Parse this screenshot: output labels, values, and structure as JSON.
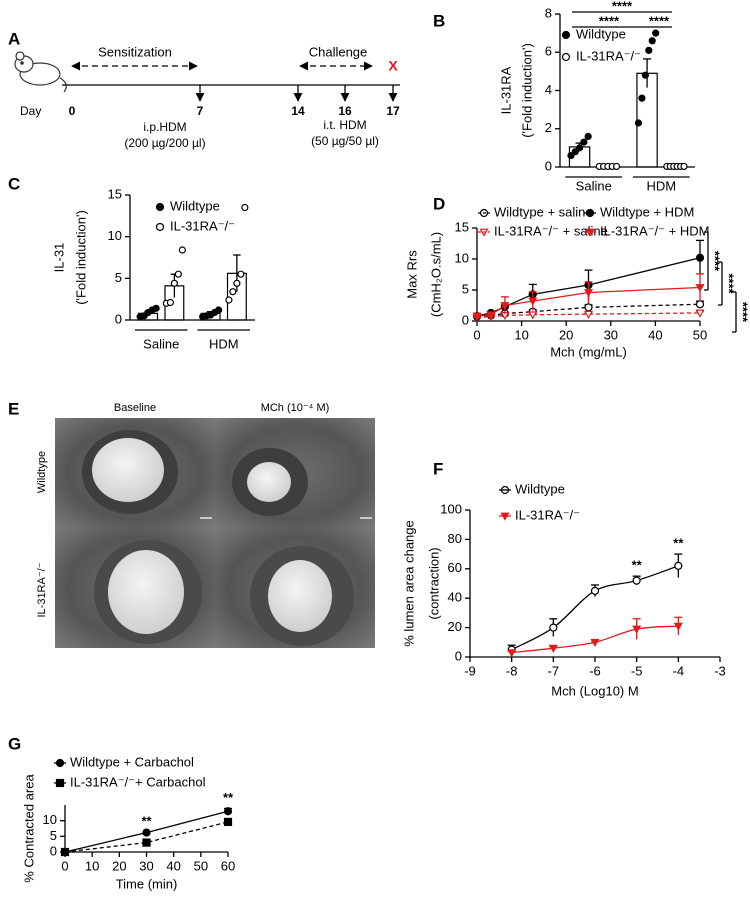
{
  "panel_labels": [
    "A",
    "B",
    "C",
    "D",
    "E",
    "F",
    "G"
  ],
  "timeline": {
    "start_label": "Day",
    "days": [
      0,
      7,
      14,
      16,
      17
    ],
    "phases": [
      "Sensitization",
      "Challenge"
    ],
    "end_mark": "X",
    "treatments": [
      {
        "name": "i.p.HDM",
        "dose": "(200 µg/200 µl)"
      },
      {
        "name": "i.t. HDM",
        "dose": "(50 µg/50 µl)"
      }
    ]
  },
  "images": {
    "columns": [
      "Baseline",
      "MCh (10⁻⁴ M)"
    ],
    "rows": [
      "Wildtype",
      "IL-31RA⁻/⁻"
    ]
  },
  "chart_data": [
    {
      "type": "bar",
      "y_label": [
        "IL-31RA",
        "('Fold induction')"
      ],
      "categories": [
        "Saline",
        "HDM"
      ],
      "series": [
        {
          "name": "Wildtype",
          "color": "#000000",
          "filled": true,
          "marker": "circle",
          "values": [
            1.05,
            4.9
          ],
          "errors": [
            0.2,
            0.75
          ],
          "points": [
            [
              0.6,
              0.8,
              1.0,
              1.3,
              1.6
            ],
            [
              2.3,
              3.6,
              4.8,
              6.1,
              6.6,
              7.0
            ]
          ]
        },
        {
          "name": "IL-31RA⁻/⁻",
          "color": "#000000",
          "filled": false,
          "marker": "circle",
          "values": [
            0.03,
            0.03
          ],
          "errors": [
            0.01,
            0.01
          ],
          "points": [
            [
              0.03,
              0.03,
              0.03,
              0.03,
              0.03
            ],
            [
              0.03,
              0.03,
              0.03,
              0.03,
              0.03,
              0.03
            ]
          ]
        }
      ],
      "ylim": [
        0,
        8
      ],
      "yticks": [
        0,
        2,
        4,
        6,
        8
      ],
      "significance": [
        "****",
        "****",
        "****"
      ]
    },
    {
      "type": "bar",
      "y_label": [
        "IL-31",
        "('Fold induction')"
      ],
      "categories": [
        "Saline",
        "HDM"
      ],
      "series": [
        {
          "name": "Wildtype",
          "color": "#000000",
          "filled": true,
          "marker": "circle",
          "values": [
            0.8,
            0.8
          ],
          "errors": [
            0.25,
            0.2
          ],
          "points": [
            [
              0.4,
              0.5,
              0.9,
              1.2,
              1.4
            ],
            [
              0.4,
              0.5,
              0.6,
              0.9,
              1.2
            ]
          ]
        },
        {
          "name": "IL-31RA⁻/⁻",
          "color": "#000000",
          "filled": false,
          "marker": "circle",
          "values": [
            4.1,
            5.6
          ],
          "errors": [
            1.4,
            2.2
          ],
          "points": [
            [
              2.0,
              2.1,
              4.4,
              5.5,
              8.4
            ],
            [
              2.4,
              3.4,
              4.4,
              5.5,
              13.5
            ]
          ]
        }
      ],
      "ylim": [
        0,
        15
      ],
      "yticks": [
        0,
        5,
        10,
        15
      ]
    },
    {
      "type": "line",
      "y_label": [
        "Max Rrs",
        "(CmH₂O.s/mL)"
      ],
      "x_label": "Mch (mg/mL)",
      "x": [
        0,
        3.125,
        6.25,
        12.5,
        25,
        50
      ],
      "series": [
        {
          "name": "Wildtype + saline",
          "color": "#000000",
          "dashed": true,
          "filled": false,
          "marker": "circle",
          "values": [
            0.7,
            0.9,
            1.2,
            1.5,
            2.2,
            2.7
          ],
          "errors": [
            0.1,
            0.1,
            0.2,
            0.3,
            0.4,
            0.5
          ]
        },
        {
          "name": "Wildtype + HDM",
          "color": "#000000",
          "dashed": false,
          "filled": true,
          "marker": "circle",
          "values": [
            0.8,
            1.3,
            2.3,
            4.3,
            5.8,
            10.2
          ],
          "errors": [
            0.1,
            0.2,
            0.3,
            1.6,
            2.4,
            2.8
          ]
        },
        {
          "name": "IL-31RA⁻/⁻ + saline",
          "color": "#e31a1c",
          "dashed": true,
          "filled": false,
          "marker": "triangle-down",
          "values": [
            0.6,
            0.7,
            0.9,
            1.0,
            1.1,
            1.3
          ],
          "errors": [
            0.05,
            0.1,
            0.1,
            0.15,
            0.2,
            0.3
          ]
        },
        {
          "name": "IL-31RA⁻/⁻ + HDM",
          "color": "#e31a1c",
          "dashed": false,
          "filled": true,
          "marker": "triangle-down",
          "values": [
            0.8,
            1.0,
            2.5,
            3.2,
            4.6,
            5.4
          ],
          "errors": [
            0.1,
            0.2,
            1.4,
            1.5,
            1.7,
            2.2
          ]
        }
      ],
      "xlim": [
        0,
        50
      ],
      "xticks": [
        0,
        10,
        20,
        30,
        40,
        50
      ],
      "ylim": [
        0,
        15
      ],
      "yticks": [
        0,
        5,
        10,
        15
      ],
      "significance": [
        "****",
        "****",
        "****"
      ]
    },
    {
      "type": "line",
      "smooth": true,
      "y_label": [
        "% lumen area  change",
        "(contraction)"
      ],
      "x_label": "Mch (Log10)  M",
      "x": [
        -8,
        -7,
        -6,
        -5,
        -4
      ],
      "series": [
        {
          "name": "Wildtype",
          "color": "#000000",
          "dashed": false,
          "filled": false,
          "marker": "circle",
          "values": [
            5,
            20,
            45,
            52,
            62
          ],
          "errors": [
            3,
            6,
            4,
            3,
            8
          ]
        },
        {
          "name": "IL-31RA⁻/⁻",
          "color": "#e31a1c",
          "dashed": false,
          "filled": true,
          "marker": "triangle-down",
          "values": [
            3,
            6,
            10,
            19,
            21
          ],
          "errors": [
            1,
            1,
            1,
            7,
            6
          ]
        }
      ],
      "xlim": [
        -9,
        -3
      ],
      "xticks": [
        -9,
        -8,
        -7,
        -6,
        -5,
        -4,
        -3
      ],
      "ylim": [
        0,
        100
      ],
      "yticks": [
        0,
        20,
        40,
        60,
        80,
        100
      ],
      "annotations": [
        {
          "label": "**",
          "x": -5
        },
        {
          "label": "**",
          "x": -4
        }
      ]
    },
    {
      "type": "line",
      "y_label": [
        "% Contracted area"
      ],
      "x_label": "Time (min)",
      "x": [
        0,
        30,
        60
      ],
      "series": [
        {
          "name": "Wildtype  + Carbachol",
          "color": "#000000",
          "dashed": false,
          "filled": true,
          "marker": "circle",
          "values": [
            0,
            6.2,
            13.0
          ],
          "errors": [
            0,
            0.15,
            0.9
          ]
        },
        {
          "name": "IL-31RA⁻/⁻+ Carbachol",
          "color": "#000000",
          "dashed": true,
          "filled": true,
          "marker": "square",
          "values": [
            0,
            3.0,
            9.6
          ],
          "errors": [
            0,
            0.35,
            0.35
          ]
        }
      ],
      "xlim": [
        0,
        60
      ],
      "xticks": [
        0,
        10,
        20,
        30,
        40,
        50,
        60
      ],
      "ylim": [
        0,
        15
      ],
      "yticks": [
        0,
        5,
        10
      ],
      "annotations": [
        {
          "label": "**",
          "x": 30
        },
        {
          "label": "**",
          "x": 60
        }
      ]
    }
  ]
}
